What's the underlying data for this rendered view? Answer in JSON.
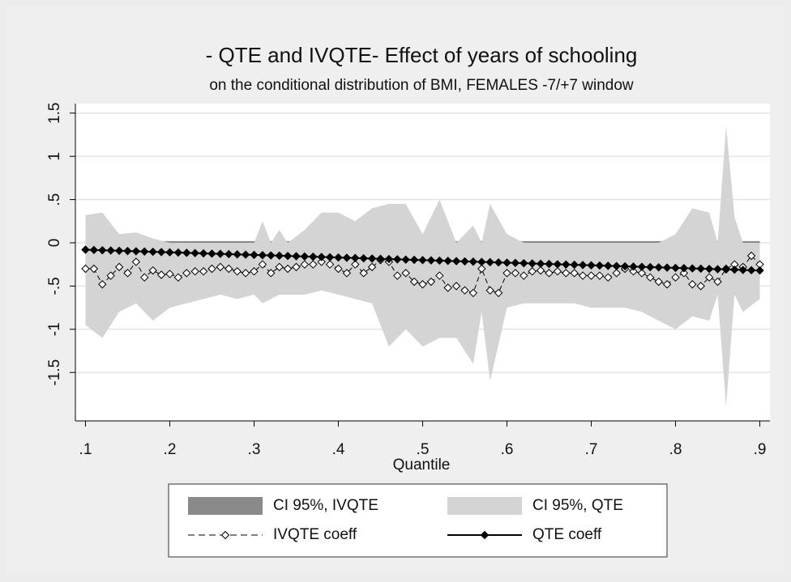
{
  "chart_data": {
    "type": "line",
    "title": "- QTE and IVQTE- Effect of years of schooling",
    "subtitle": "on the conditional distribution of BMI, FEMALES -7/+7 window",
    "x_label": "Quantile",
    "xlim": [
      0.088,
      0.912
    ],
    "ylim": [
      -2.06,
      1.61
    ],
    "xticks": [
      {
        "value": 0.1,
        "label": ".1"
      },
      {
        "value": 0.2,
        "label": ".2"
      },
      {
        "value": 0.3,
        "label": ".3"
      },
      {
        "value": 0.4,
        "label": ".4"
      },
      {
        "value": 0.5,
        "label": ".5"
      },
      {
        "value": 0.6,
        "label": ".6"
      },
      {
        "value": 0.7,
        "label": ".7"
      },
      {
        "value": 0.8,
        "label": ".8"
      },
      {
        "value": 0.9,
        "label": ".9"
      }
    ],
    "yticks": [
      {
        "value": -1.5,
        "label": "-1.5"
      },
      {
        "value": -1,
        "label": "-1"
      },
      {
        "value": -0.5,
        "label": "-.5"
      },
      0,
      {
        "value": 0.5,
        "label": ".5"
      },
      1,
      {
        "value": 1.5,
        "label": "1.5"
      }
    ],
    "grid": true,
    "series": [
      {
        "name": "CI 95%, IVQTE",
        "color": "#8a8a8a",
        "x": [
          0.1,
          0.9
        ],
        "upper": [
          0.02,
          0.02
        ],
        "lower": [
          -0.02,
          -0.02
        ]
      },
      {
        "name": "CI 95%, QTE",
        "color": "#d4d4d4",
        "x": [
          0.1,
          0.12,
          0.14,
          0.16,
          0.18,
          0.2,
          0.22,
          0.24,
          0.26,
          0.28,
          0.3,
          0.31,
          0.32,
          0.33,
          0.34,
          0.36,
          0.38,
          0.4,
          0.42,
          0.44,
          0.46,
          0.48,
          0.5,
          0.52,
          0.54,
          0.56,
          0.57,
          0.58,
          0.6,
          0.62,
          0.64,
          0.66,
          0.68,
          0.7,
          0.72,
          0.74,
          0.76,
          0.78,
          0.8,
          0.82,
          0.84,
          0.85,
          0.86,
          0.87,
          0.88,
          0.9
        ],
        "upper": [
          0.32,
          0.35,
          0.1,
          0.12,
          0.05,
          0,
          0,
          0,
          0,
          0,
          0,
          0.25,
          0,
          0.15,
          0,
          0.15,
          0.35,
          0.35,
          0.25,
          0.4,
          0.45,
          0.45,
          0.1,
          0.5,
          0,
          0.2,
          0,
          0.45,
          0.1,
          0,
          0,
          0,
          0,
          0,
          0,
          0,
          0,
          0,
          0.1,
          0.4,
          0.35,
          0,
          1.35,
          0.3,
          0,
          0
        ],
        "lower": [
          -0.95,
          -1.1,
          -0.8,
          -0.7,
          -0.9,
          -0.75,
          -0.7,
          -0.65,
          -0.6,
          -0.65,
          -0.6,
          -0.7,
          -0.65,
          -0.6,
          -0.6,
          -0.6,
          -0.55,
          -0.6,
          -0.65,
          -0.7,
          -1.2,
          -1.0,
          -1.2,
          -1.1,
          -1.1,
          -1.4,
          -0.8,
          -1.6,
          -0.75,
          -0.7,
          -0.7,
          -0.7,
          -0.7,
          -0.75,
          -0.75,
          -0.75,
          -0.8,
          -0.9,
          -1.0,
          -0.85,
          -0.9,
          -0.6,
          -1.9,
          -0.6,
          -0.8,
          -0.65
        ]
      },
      {
        "name": "IVQTE coeff",
        "color": "#000000",
        "dashed": true,
        "marker_fill": "#ffffff",
        "x": [
          0.1,
          0.11,
          0.12,
          0.13,
          0.14,
          0.15,
          0.16,
          0.17,
          0.18,
          0.19,
          0.2,
          0.21,
          0.22,
          0.23,
          0.24,
          0.25,
          0.26,
          0.27,
          0.28,
          0.29,
          0.3,
          0.31,
          0.32,
          0.33,
          0.34,
          0.35,
          0.36,
          0.37,
          0.38,
          0.39,
          0.4,
          0.41,
          0.42,
          0.43,
          0.44,
          0.45,
          0.46,
          0.47,
          0.48,
          0.49,
          0.5,
          0.51,
          0.52,
          0.53,
          0.54,
          0.55,
          0.56,
          0.57,
          0.58,
          0.59,
          0.6,
          0.61,
          0.62,
          0.63,
          0.64,
          0.65,
          0.66,
          0.67,
          0.68,
          0.69,
          0.7,
          0.71,
          0.72,
          0.73,
          0.74,
          0.75,
          0.76,
          0.77,
          0.78,
          0.79,
          0.8,
          0.81,
          0.82,
          0.83,
          0.84,
          0.85,
          0.86,
          0.87,
          0.88,
          0.89,
          0.9
        ],
        "values": [
          -0.3,
          -0.3,
          -0.48,
          -0.38,
          -0.28,
          -0.35,
          -0.22,
          -0.4,
          -0.32,
          -0.37,
          -0.36,
          -0.4,
          -0.35,
          -0.33,
          -0.33,
          -0.3,
          -0.28,
          -0.3,
          -0.33,
          -0.35,
          -0.33,
          -0.25,
          -0.35,
          -0.28,
          -0.3,
          -0.28,
          -0.25,
          -0.25,
          -0.22,
          -0.25,
          -0.3,
          -0.35,
          -0.25,
          -0.35,
          -0.28,
          -0.2,
          -0.22,
          -0.38,
          -0.35,
          -0.45,
          -0.48,
          -0.45,
          -0.38,
          -0.52,
          -0.5,
          -0.55,
          -0.58,
          -0.3,
          -0.55,
          -0.58,
          -0.35,
          -0.35,
          -0.38,
          -0.33,
          -0.32,
          -0.35,
          -0.33,
          -0.35,
          -0.35,
          -0.38,
          -0.38,
          -0.38,
          -0.4,
          -0.35,
          -0.3,
          -0.33,
          -0.35,
          -0.4,
          -0.45,
          -0.48,
          -0.4,
          -0.35,
          -0.48,
          -0.5,
          -0.4,
          -0.45,
          -0.3,
          -0.25,
          -0.28,
          -0.15,
          -0.25
        ]
      },
      {
        "name": "QTE coeff",
        "color": "#000000",
        "dashed": false,
        "marker_fill": "#000000",
        "x": [
          0.1,
          0.11,
          0.12,
          0.13,
          0.14,
          0.15,
          0.16,
          0.17,
          0.18,
          0.19,
          0.2,
          0.21,
          0.22,
          0.23,
          0.24,
          0.25,
          0.26,
          0.27,
          0.28,
          0.29,
          0.3,
          0.31,
          0.32,
          0.33,
          0.34,
          0.35,
          0.36,
          0.37,
          0.38,
          0.39,
          0.4,
          0.41,
          0.42,
          0.43,
          0.44,
          0.45,
          0.46,
          0.47,
          0.48,
          0.49,
          0.5,
          0.51,
          0.52,
          0.53,
          0.54,
          0.55,
          0.56,
          0.57,
          0.58,
          0.59,
          0.6,
          0.61,
          0.62,
          0.63,
          0.64,
          0.65,
          0.66,
          0.67,
          0.68,
          0.69,
          0.7,
          0.71,
          0.72,
          0.73,
          0.74,
          0.75,
          0.76,
          0.77,
          0.78,
          0.79,
          0.8,
          0.81,
          0.82,
          0.83,
          0.84,
          0.85,
          0.86,
          0.87,
          0.88,
          0.89,
          0.9
        ],
        "values": [
          -0.08,
          -0.083,
          -0.086,
          -0.089,
          -0.092,
          -0.095,
          -0.098,
          -0.101,
          -0.104,
          -0.107,
          -0.11,
          -0.113,
          -0.116,
          -0.119,
          -0.122,
          -0.125,
          -0.128,
          -0.131,
          -0.134,
          -0.137,
          -0.14,
          -0.143,
          -0.146,
          -0.149,
          -0.152,
          -0.155,
          -0.158,
          -0.161,
          -0.164,
          -0.167,
          -0.17,
          -0.173,
          -0.176,
          -0.179,
          -0.182,
          -0.185,
          -0.188,
          -0.191,
          -0.194,
          -0.197,
          -0.2,
          -0.203,
          -0.206,
          -0.209,
          -0.212,
          -0.215,
          -0.218,
          -0.221,
          -0.224,
          -0.227,
          -0.23,
          -0.233,
          -0.236,
          -0.239,
          -0.242,
          -0.245,
          -0.248,
          -0.251,
          -0.254,
          -0.257,
          -0.26,
          -0.263,
          -0.266,
          -0.269,
          -0.272,
          -0.275,
          -0.278,
          -0.281,
          -0.284,
          -0.287,
          -0.29,
          -0.293,
          -0.296,
          -0.299,
          -0.302,
          -0.305,
          -0.308,
          -0.311,
          -0.314,
          -0.317,
          -0.32
        ]
      }
    ]
  }
}
